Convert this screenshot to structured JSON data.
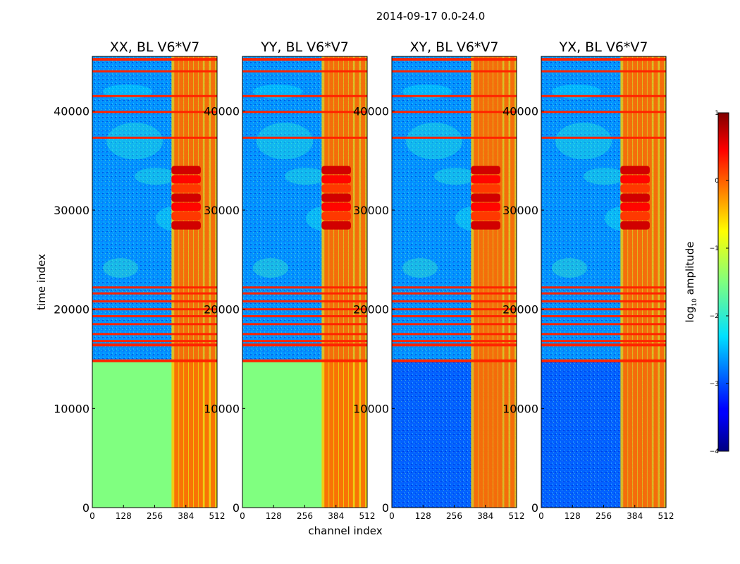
{
  "chart_data": {
    "type": "heatmap",
    "suptitle": "2014-09-17 0.0-24.0",
    "xlabel": "channel index",
    "ylabel": "time index",
    "xlim": [
      0,
      512
    ],
    "ylim": [
      0,
      45500
    ],
    "x_ticks": [
      0,
      128,
      256,
      384,
      512
    ],
    "y_ticks": [
      0,
      10000,
      20000,
      30000,
      40000
    ],
    "colorbar": {
      "label_main": "log",
      "label_sub": "10",
      "label_rest": " amplitude",
      "range": [
        -4,
        1
      ],
      "ticks": [
        -4,
        -3,
        -2,
        -1,
        0,
        1
      ],
      "tick_labels": [
        "−4",
        "−3",
        "−2",
        "−1",
        "0",
        "1"
      ],
      "colormap": "jet"
    },
    "panels": [
      {
        "title": "XX, BL V6*V7",
        "low_band_level": -1.5
      },
      {
        "title": "YY, BL V6*V7",
        "low_band_level": -1.5
      },
      {
        "title": "XY, BL V6*V7",
        "low_band_level": -2.9
      },
      {
        "title": "YX, BL V6*V7",
        "low_band_level": -2.9
      }
    ],
    "rfi_channel_range": [
      325,
      512
    ],
    "rfi_channel_columns": [
      345,
      365,
      385,
      405,
      425,
      445,
      470,
      495
    ],
    "rfi_level": -0.6,
    "flag_rows_time": [
      45200,
      44000,
      41500,
      39900,
      37300,
      22200,
      21600,
      20800,
      20000,
      19300,
      18500,
      17500,
      16800,
      16400,
      14800
    ],
    "strong_rfi_event_time_range": [
      28000,
      34500
    ],
    "strong_rfi_event_level": 0.6
  }
}
